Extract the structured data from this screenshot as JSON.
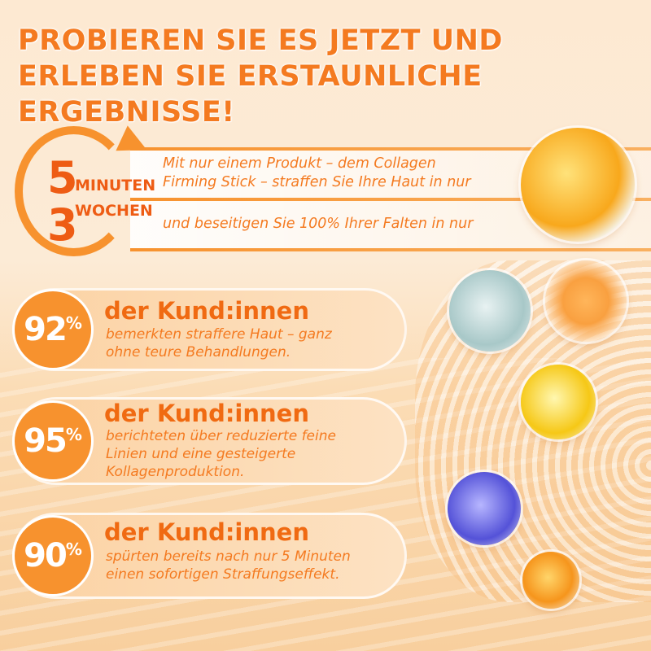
{
  "headline": "PROBIEREN SIE ES JETZT UND ERLEBEN SIE ERSTAUNLICHE ERGEBNISSE!",
  "timing": {
    "minutes_number": "5",
    "minutes_unit": "MINUTEN",
    "weeks_number": "3",
    "weeks_unit": "WOCHEN",
    "line1": "Mit nur einem Produkt – dem Collagen",
    "line2": "Firming Stick – straffen Sie Ihre Haut in nur",
    "line3": "und beseitigen Sie 100% Ihrer Falten in nur"
  },
  "stats": [
    {
      "value": "92",
      "unit": "%",
      "heading": "der Kund:innen",
      "text": [
        "bemerkten straffere Haut – ganz",
        "ohne teure Behandlungen."
      ]
    },
    {
      "value": "95",
      "unit": "%",
      "heading": "der Kund:innen",
      "text": [
        "berichteten über reduzierte feine",
        "Linien und eine gesteigerte",
        "Kollagenproduktion."
      ]
    },
    {
      "value": "90",
      "unit": "%",
      "heading": "der Kund:innen",
      "text": [
        "spürten bereits nach nur 5 Minuten",
        "einen sofortigen Straffungseffekt."
      ]
    }
  ],
  "colors": {
    "accent": "#f47a20",
    "dark_accent": "#ee5c14",
    "circle": "#f7922e"
  }
}
